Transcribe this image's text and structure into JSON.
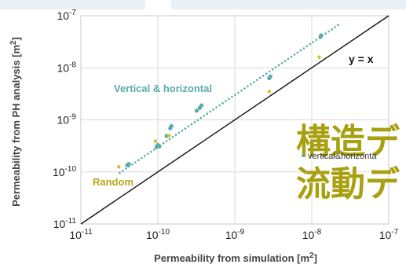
{
  "chart_data": {
    "type": "scatter",
    "xlabel": "Permeability from simulation [m",
    "xlabel_sup": "2",
    "xlabel_end": "]",
    "ylabel": "Permeability from PH analysis [m",
    "ylabel_sup": "2",
    "ylabel_end": "]",
    "x_scale": "log",
    "y_scale": "log",
    "xlim": [
      1e-11,
      1e-07
    ],
    "ylim": [
      1e-11,
      1e-07
    ],
    "grid": true,
    "x_ticks": [
      {
        "value": 1e-11,
        "base": "10",
        "exp": "-11"
      },
      {
        "value": 1e-10,
        "base": "10",
        "exp": "-10"
      },
      {
        "value": 1e-09,
        "base": "10",
        "exp": "-9"
      },
      {
        "value": 1e-08,
        "base": "10",
        "exp": "-8"
      },
      {
        "value": 1e-07,
        "base": "10",
        "exp": "-7"
      }
    ],
    "y_ticks": [
      {
        "value": 1e-11,
        "base": "10",
        "exp": "-11"
      },
      {
        "value": 1e-10,
        "base": "10",
        "exp": "-10"
      },
      {
        "value": 1e-09,
        "base": "10",
        "exp": "-9"
      },
      {
        "value": 1e-08,
        "base": "10",
        "exp": "-8"
      },
      {
        "value": 1e-07,
        "base": "10",
        "exp": "-7"
      }
    ],
    "series": [
      {
        "name": "vertical&horizonta",
        "color": "#5aaca8",
        "points": [
          [
            4e-11,
            1.35e-10
          ],
          [
            4.2e-11,
            1.42e-10
          ],
          [
            9.6e-11,
            3e-10
          ],
          [
            1e-10,
            3.3e-10
          ],
          [
            1.05e-10,
            3.1e-10
          ],
          [
            1.3e-10,
            4.9e-10
          ],
          [
            1.45e-10,
            6.9e-10
          ],
          [
            1.5e-10,
            7.6e-10
          ],
          [
            3.2e-10,
            1.5e-09
          ],
          [
            3.5e-10,
            1.7e-09
          ],
          [
            3.7e-10,
            1.9e-09
          ],
          [
            2.8e-09,
            6.3e-09
          ],
          [
            2.9e-09,
            6.8e-09
          ],
          [
            1.3e-08,
            3.9e-08
          ],
          [
            1.32e-08,
            4.2e-08
          ]
        ]
      },
      {
        "name": "Random",
        "color": "#d4c21c",
        "points": [
          [
            3.1e-11,
            1.25e-10
          ],
          [
            9.3e-11,
            3.9e-10
          ],
          [
            1.4e-10,
            5e-10
          ],
          [
            2.8e-09,
            3.5e-09
          ],
          [
            1.25e-08,
            1.6e-08
          ]
        ]
      }
    ],
    "fit_line": {
      "color": "#5aaca8",
      "x_start": 3.2e-11,
      "x_end": 2.2e-08,
      "slope": 1.0,
      "factor": 3.0
    },
    "reference_line": {
      "label": "y = x",
      "color": "#111111"
    },
    "annotations": {
      "vertical_label": "Vertical & horizontal",
      "random_label": "Random",
      "yx_label": "y = x"
    },
    "overlay": {
      "line1": "構造デ",
      "line2": "流動デ",
      "color": "#a8a010"
    },
    "legend": {
      "text": "vertical&horizonta",
      "position": "inside-right"
    }
  }
}
